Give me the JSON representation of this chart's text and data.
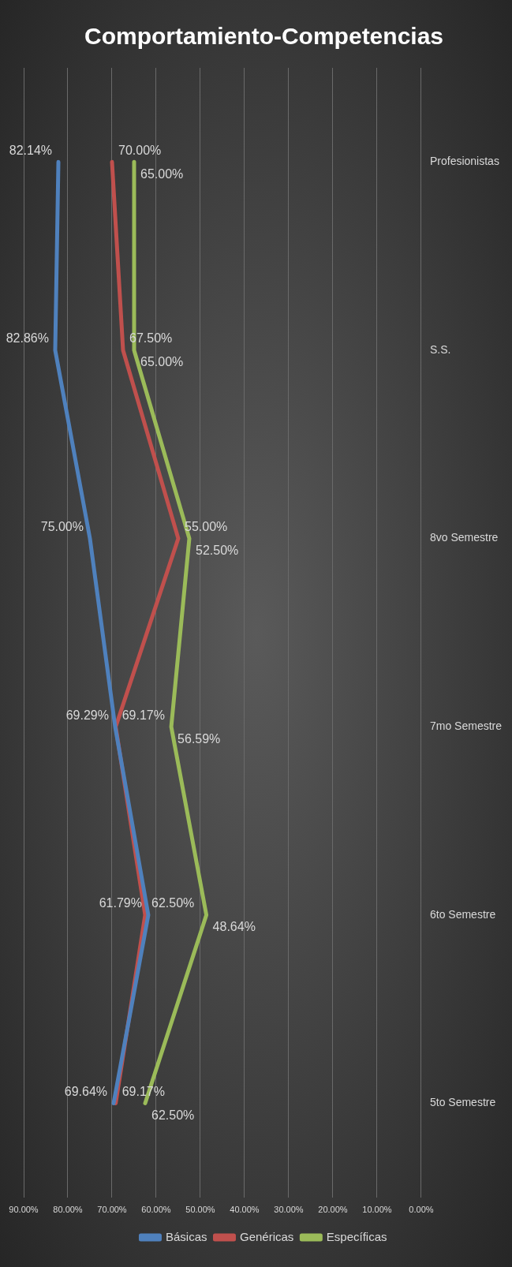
{
  "chart_data": {
    "type": "line",
    "title": "Comportamiento-Competencias",
    "orientation": "horizontal",
    "categories": [
      "Profesionistas",
      "S.S.",
      "8vo Semestre",
      "7mo Semestre",
      "6to Semestre",
      "5to Semestre"
    ],
    "series": [
      {
        "name": "Básicas",
        "color": "#4f81bd",
        "values": [
          82.14,
          82.86,
          75.0,
          69.29,
          61.79,
          69.64
        ],
        "value_labels": [
          "82.14%",
          "82.86%",
          "75.00%",
          "69.29%",
          "61.79%",
          "69.64%"
        ]
      },
      {
        "name": "Genéricas",
        "color": "#c0504d",
        "values": [
          70.0,
          67.5,
          55.0,
          69.17,
          62.5,
          69.17
        ],
        "value_labels": [
          "70.00%",
          "67.50%",
          "55.00%",
          "69.17%",
          "62.50%",
          "69.17%"
        ]
      },
      {
        "name": "Específicas",
        "color": "#9bbb59",
        "values": [
          65.0,
          65.0,
          52.5,
          56.59,
          48.64,
          62.5
        ],
        "value_labels": [
          "65.00%",
          "65.00%",
          "52.50%",
          "56.59%",
          "48.64%",
          "62.50%"
        ]
      }
    ],
    "xlim": [
      90,
      0
    ],
    "xticks": [
      {
        "value": 90,
        "label": "90.00%"
      },
      {
        "value": 80,
        "label": "80.00%"
      },
      {
        "value": 70,
        "label": "70.00%"
      },
      {
        "value": 60,
        "label": "60.00%"
      },
      {
        "value": 50,
        "label": "50.00%"
      },
      {
        "value": 40,
        "label": "40.00%"
      },
      {
        "value": 30,
        "label": "30.00%"
      },
      {
        "value": 20,
        "label": "20.00%"
      },
      {
        "value": 10,
        "label": "10.00%"
      },
      {
        "value": 0,
        "label": "0.00%"
      }
    ],
    "grid": "x",
    "legend": "bottom",
    "marker": "none",
    "line_style": "solid"
  }
}
